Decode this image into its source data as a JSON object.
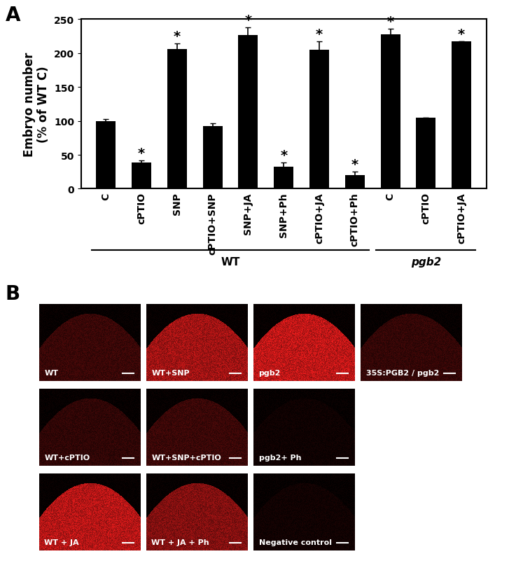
{
  "panel_labels": [
    "A",
    "B"
  ],
  "chart_data": {
    "type": "bar",
    "y_label": "Embryo number\n(% of WT C)",
    "categories": [
      "C",
      "cPTIO",
      "SNP",
      "cPTIO+SNP",
      "SNP+JA",
      "SNP+Ph",
      "cPTIO+JA",
      "cPTIO+Ph",
      "C",
      "cPTIO",
      "cPTIO+JA"
    ],
    "values": [
      100,
      39,
      206,
      92,
      227,
      32,
      205,
      20,
      228,
      105,
      217
    ],
    "errors": [
      3,
      3,
      8,
      5,
      11,
      7,
      12,
      5,
      8,
      0,
      0
    ],
    "significance": [
      null,
      "*",
      "*",
      null,
      "*",
      "*",
      "*",
      "*",
      "*",
      null,
      "*"
    ],
    "groups": [
      {
        "label": "WT",
        "start": 0,
        "end": 7
      },
      {
        "label": "pgb2",
        "start": 8,
        "end": 10
      }
    ],
    "color": "#000000",
    "ylim": [
      0,
      250
    ],
    "yticks": [
      0,
      50,
      100,
      150,
      200,
      250
    ],
    "grid": false
  },
  "images": {
    "rows": [
      [
        "WT",
        "WT+SNP",
        "pgb2",
        "35S:PGB2 / pgb2"
      ],
      [
        "WT+cPTIO",
        "WT+SNP+cPTIO",
        "pgb2+ Ph"
      ],
      [
        "WT + JA",
        "WT + JA + Ph",
        "Negative control"
      ]
    ]
  }
}
